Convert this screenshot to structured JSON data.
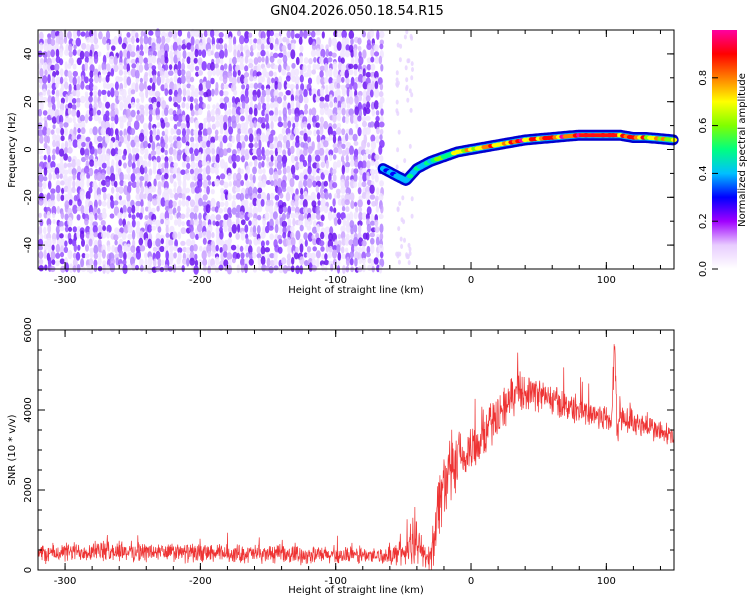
{
  "chart_data": [
    {
      "type": "heatmap",
      "title": "GN04.2026.050.18.54.R15",
      "xlabel": "Height of straight line (km)",
      "ylabel": "Frequency (Hz)",
      "xlim": [
        -320,
        150
      ],
      "ylim": [
        -50,
        50
      ],
      "x_ticks": [
        -300,
        -200,
        -100,
        0,
        100
      ],
      "y_ticks": [
        -40,
        -20,
        0,
        20,
        40
      ],
      "colorbar": {
        "label": "Normalized spectral amplitude",
        "range": [
          0,
          1
        ],
        "ticks": [
          0.0,
          0.2,
          0.4,
          0.6,
          0.8
        ],
        "tick_labels": [
          "0.0",
          "0.2",
          "0.4",
          "0.6",
          "0.8"
        ],
        "colors": [
          "#ffffff",
          "#e8ccff",
          "#a000ff",
          "#0000ff",
          "#00c0ff",
          "#00ff80",
          "#80ff00",
          "#ffff00",
          "#ff8000",
          "#ff0000",
          "#ff00a0"
        ]
      },
      "noise_region_x": [
        -320,
        -65
      ],
      "signal_track": {
        "x": [
          -65,
          -55,
          -48,
          -40,
          -30,
          -20,
          -10,
          0,
          10,
          20,
          40,
          60,
          80,
          100,
          110,
          120,
          130,
          150
        ],
        "frequency": [
          -8,
          -11,
          -13,
          -8,
          -5,
          -3,
          -1,
          0,
          1,
          2,
          4,
          5,
          6,
          6,
          6,
          5,
          5,
          4
        ],
        "amplitude": [
          0.35,
          0.45,
          0.45,
          0.5,
          0.55,
          0.6,
          0.7,
          0.8,
          0.85,
          0.9,
          0.95,
          0.95,
          1.0,
          1.0,
          0.95,
          0.9,
          0.85,
          0.8
        ]
      }
    },
    {
      "type": "line",
      "xlabel": "Height of straight line (km)",
      "ylabel": "SNR (10 * v/v)",
      "xlim": [
        -320,
        150
      ],
      "ylim": [
        0,
        6000
      ],
      "x_ticks": [
        -300,
        -200,
        -100,
        0,
        100
      ],
      "y_ticks": [
        0,
        2000,
        4000,
        6000
      ],
      "color": "#ee3333",
      "envelope": {
        "x": [
          -320,
          -280,
          -200,
          -150,
          -100,
          -60,
          -45,
          -40,
          -36,
          -32,
          -28,
          -25,
          -20,
          -10,
          0,
          10,
          20,
          30,
          35,
          50,
          70,
          90,
          100,
          104,
          106,
          108,
          112,
          130,
          150
        ],
        "mean": [
          400,
          480,
          420,
          400,
          360,
          360,
          500,
          700,
          450,
          250,
          600,
          1500,
          2200,
          2600,
          3000,
          3400,
          3900,
          4300,
          4500,
          4400,
          4100,
          3900,
          3800,
          3700,
          5700,
          3500,
          3800,
          3600,
          3300
        ],
        "spread": [
          280,
          300,
          280,
          270,
          260,
          250,
          500,
          600,
          400,
          300,
          700,
          1100,
          1000,
          900,
          800,
          700,
          650,
          600,
          550,
          500,
          450,
          420,
          420,
          420,
          600,
          700,
          420,
          380,
          350
        ]
      }
    }
  ]
}
